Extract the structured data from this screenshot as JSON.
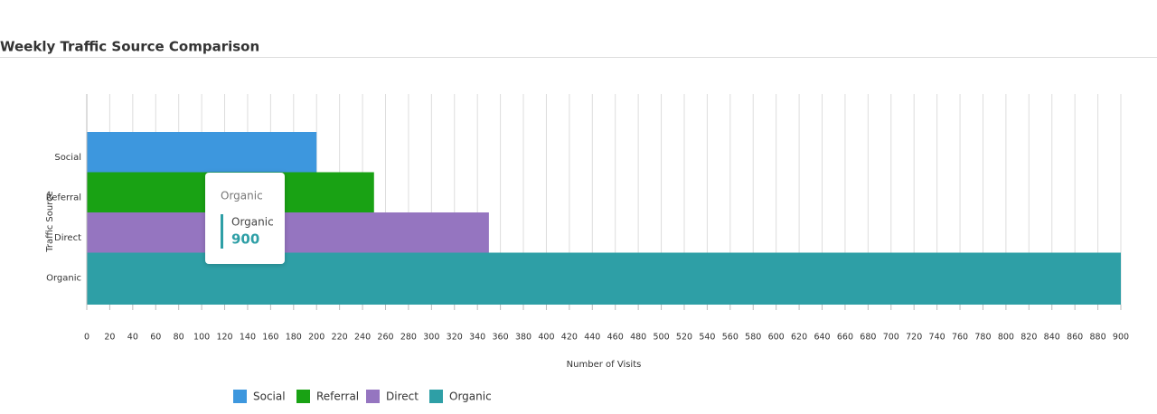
{
  "chart_data": {
    "type": "bar",
    "orientation": "horizontal",
    "title": "Weekly Traffic Source Comparison",
    "categories": [
      "Social",
      "Referral",
      "Direct",
      "Organic"
    ],
    "values": [
      200,
      250,
      350,
      900
    ],
    "colors": [
      "#3d97de",
      "#19a214",
      "#9575c0",
      "#2e9fa6"
    ],
    "xlabel": "Number of Visits",
    "ylabel": "Traffic Source",
    "xlim": [
      0,
      900
    ],
    "xticks": [
      0,
      20,
      40,
      60,
      80,
      100,
      120,
      140,
      160,
      180,
      200,
      220,
      240,
      260,
      280,
      300,
      320,
      340,
      360,
      380,
      400,
      420,
      440,
      460,
      480,
      500,
      520,
      540,
      560,
      580,
      600,
      620,
      640,
      660,
      680,
      700,
      720,
      740,
      760,
      780,
      800,
      820,
      840,
      860,
      880,
      900
    ],
    "grid": true,
    "legend": "bottom",
    "tooltip": {
      "title": "Organic",
      "label": "Organic",
      "value": 900
    }
  }
}
